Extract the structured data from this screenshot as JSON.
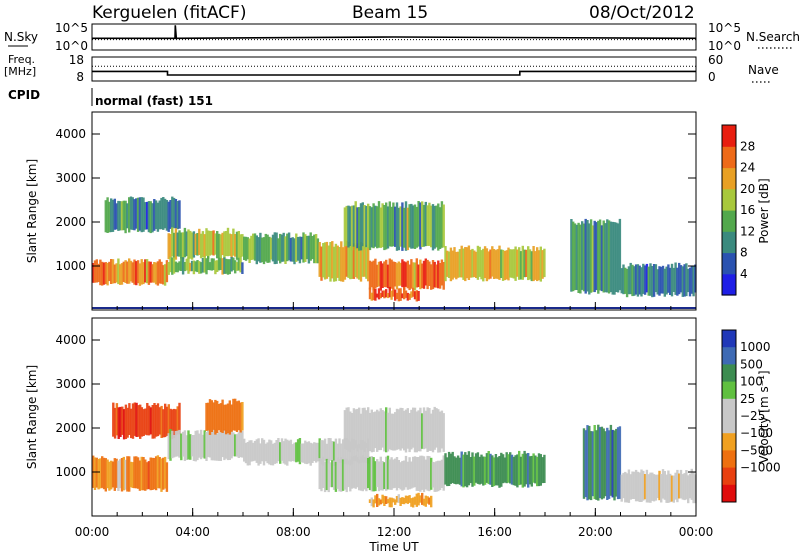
{
  "header": {
    "station": "Kerguelen (fitACF)",
    "beam": "Beam 15",
    "date": "08/Oct/2012"
  },
  "noise_panel": {
    "left_label": "N.Sky",
    "right_label": "N.Search",
    "left_ticks": [
      "10^5",
      "10^0"
    ],
    "right_ticks": [
      "10^5",
      "10^0"
    ]
  },
  "freq_panel": {
    "left_label_1": "Freq.",
    "left_label_2": "[MHz]",
    "left_ticks": [
      "18",
      "8"
    ],
    "right_label": "Nave",
    "right_ticks": [
      "60",
      "0"
    ]
  },
  "cpid_panel": {
    "label": "CPID",
    "mode": "normal (fast) 151"
  },
  "chart_data": [
    {
      "type": "line",
      "panel": "noise",
      "series": [
        {
          "name": "N.Sky",
          "style": "solid",
          "x_hours": [
            0,
            3.3,
            3.31,
            3.35,
            12,
            24
          ],
          "y_position": [
            0.55,
            0.55,
            0.05,
            0.55,
            0.5,
            0.55
          ]
        },
        {
          "name": "N.Search",
          "style": "dotted",
          "x_hours": [
            0,
            24
          ],
          "y_position": [
            0.6,
            0.6
          ]
        }
      ]
    },
    {
      "type": "line",
      "panel": "frequency",
      "series": [
        {
          "name": "Freq.",
          "style": "solid",
          "x_hours": [
            0,
            3,
            3,
            17,
            17,
            24
          ],
          "y_mhz": [
            12,
            12,
            10.5,
            10.5,
            12,
            12
          ]
        },
        {
          "name": "Nave",
          "style": "dotted",
          "x_hours": [
            0,
            24
          ],
          "y_nave": [
            37,
            37
          ]
        }
      ],
      "y_ticks": [
        "18",
        "8"
      ],
      "y2_ticks": [
        "60",
        "0"
      ]
    },
    {
      "type": "heatmap",
      "panel": "power",
      "ylabel": "Slant Range [km]",
      "yticks": [
        "1000",
        "2000",
        "3000",
        "4000"
      ],
      "ylim": [
        0,
        4500
      ],
      "colorbar_label": "Power [dB]",
      "colorbar_ticks": [
        "4",
        "8",
        "12",
        "16",
        "20",
        "24",
        "28"
      ],
      "colorbar_colors": [
        "#1f1fe6",
        "#2a52b0",
        "#3a8a7e",
        "#52a84c",
        "#a8c83c",
        "#e8a024",
        "#ee6a18",
        "#e81e10"
      ],
      "echo_bands": [
        {
          "x_start": 0.0,
          "x_end": 3.0,
          "r_bottom": 600,
          "r_top": 1100,
          "value": 24
        },
        {
          "x_start": 0.5,
          "x_end": 3.5,
          "r_bottom": 1800,
          "r_top": 2500,
          "value": 10
        },
        {
          "x_start": 3.0,
          "x_end": 6.0,
          "r_bottom": 1200,
          "r_top": 1800,
          "value": 18
        },
        {
          "x_start": 3.0,
          "x_end": 6.0,
          "r_bottom": 850,
          "r_top": 1150,
          "value": 14
        },
        {
          "x_start": 6.0,
          "x_end": 9.0,
          "r_bottom": 1100,
          "r_top": 1700,
          "value": 14
        },
        {
          "x_start": 9.0,
          "x_end": 11.0,
          "r_bottom": 700,
          "r_top": 1500,
          "value": 20
        },
        {
          "x_start": 11.0,
          "x_end": 14.0,
          "r_bottom": 500,
          "r_top": 1100,
          "value": 26
        },
        {
          "x_start": 10.0,
          "x_end": 14.0,
          "r_bottom": 1400,
          "r_top": 2400,
          "value": 14
        },
        {
          "x_start": 14.0,
          "x_end": 18.0,
          "r_bottom": 700,
          "r_top": 1400,
          "value": 20
        },
        {
          "x_start": 11.0,
          "x_end": 13.0,
          "r_bottom": 250,
          "r_top": 450,
          "value": 28
        },
        {
          "x_start": 19.0,
          "x_end": 21.0,
          "r_bottom": 400,
          "r_top": 2000,
          "value": 12
        },
        {
          "x_start": 21.0,
          "x_end": 24.0,
          "r_bottom": 350,
          "r_top": 1000,
          "value": 8
        }
      ]
    },
    {
      "type": "heatmap",
      "panel": "velocity",
      "xlabel": "Time UT",
      "xticks": [
        "00:00",
        "04:00",
        "08:00",
        "12:00",
        "16:00",
        "20:00",
        "00:00"
      ],
      "xlim": [
        0,
        24
      ],
      "ylabel": "Slant Range [km]",
      "yticks": [
        "1000",
        "2000",
        "3000",
        "4000"
      ],
      "ylim": [
        0,
        4500
      ],
      "colorbar_label": "Velocity [m s⁻¹]",
      "colorbar_ticks": [
        "1000",
        "500",
        "100",
        "25",
        "−25",
        "−100",
        "−500",
        "−1000"
      ],
      "colorbar_colors": [
        "#2038b8",
        "#3e6ab4",
        "#3c8c50",
        "#60c040",
        "#c8c8c8",
        "#c8c8c8",
        "#f0a020",
        "#ee7010",
        "#e84010",
        "#e00c0c"
      ],
      "echo_bands": [
        {
          "x_start": 0.0,
          "x_end": 3.0,
          "r_bottom": 600,
          "r_top": 1300,
          "value": -300
        },
        {
          "x_start": 0.8,
          "x_end": 3.5,
          "r_bottom": 1800,
          "r_top": 2500,
          "value": -800
        },
        {
          "x_start": 3.0,
          "x_end": 6.0,
          "r_bottom": 1300,
          "r_top": 1900,
          "value": 0
        },
        {
          "x_start": 4.5,
          "x_end": 6.0,
          "r_bottom": 1900,
          "r_top": 2600,
          "value": -400
        },
        {
          "x_start": 6.0,
          "x_end": 11.0,
          "r_bottom": 1200,
          "r_top": 1700,
          "value": 0
        },
        {
          "x_start": 9.0,
          "x_end": 14.0,
          "r_bottom": 600,
          "r_top": 1300,
          "value": 0
        },
        {
          "x_start": 10.0,
          "x_end": 14.0,
          "r_bottom": 1500,
          "r_top": 2400,
          "value": 0
        },
        {
          "x_start": 14.0,
          "x_end": 18.0,
          "r_bottom": 700,
          "r_top": 1400,
          "value": 80
        },
        {
          "x_start": 11.0,
          "x_end": 13.5,
          "r_bottom": 250,
          "r_top": 450,
          "value": -250
        },
        {
          "x_start": 19.5,
          "x_end": 21.0,
          "r_bottom": 400,
          "r_top": 2000,
          "value": 300
        },
        {
          "x_start": 21.0,
          "x_end": 24.0,
          "r_bottom": 350,
          "r_top": 1000,
          "value": -30
        }
      ]
    }
  ]
}
